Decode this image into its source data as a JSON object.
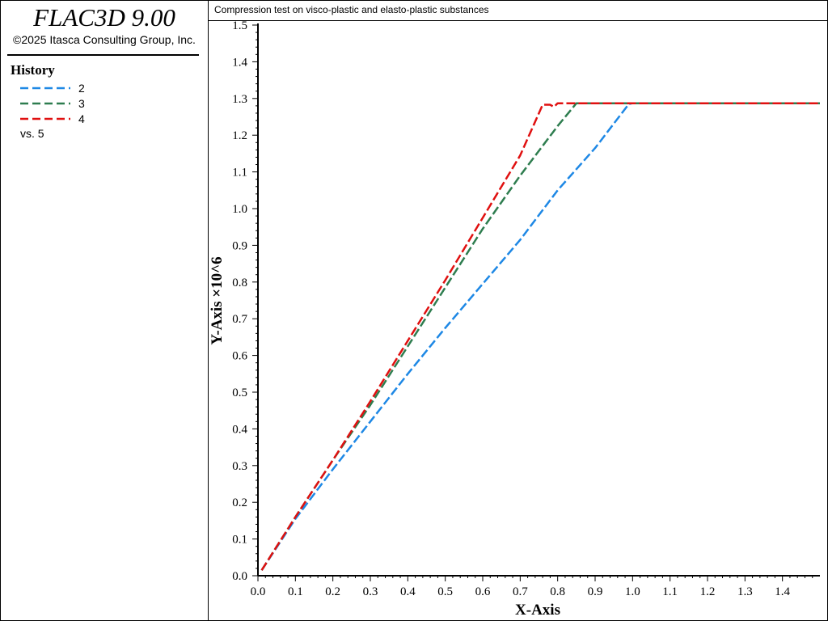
{
  "app": {
    "title": "FLAC3D 9.00",
    "copyright": "©2025 Itasca Consulting Group, Inc."
  },
  "legend": {
    "title": "History",
    "items": [
      {
        "label": "2",
        "color": "#1e88e5"
      },
      {
        "label": "3",
        "color": "#2e7d4f"
      },
      {
        "label": "4",
        "color": "#e01010"
      }
    ],
    "vs_label": "vs. 5"
  },
  "chart_data": {
    "type": "line",
    "title": "Compression test on visco-plastic and elasto-plastic substances",
    "xlabel": "X-Axis",
    "ylabel": "Y-Axis ×10^6",
    "xlim": [
      0.0,
      1.5
    ],
    "ylim": [
      0.0,
      1.5
    ],
    "x_ticks": [
      "0.0",
      "0.1",
      "0.2",
      "0.3",
      "0.4",
      "0.5",
      "0.6",
      "0.7",
      "0.8",
      "0.9",
      "1.0",
      "1.1",
      "1.2",
      "1.3",
      "1.4"
    ],
    "y_ticks": [
      "0.0",
      "0.1",
      "0.2",
      "0.3",
      "0.4",
      "0.5",
      "0.6",
      "0.7",
      "0.8",
      "0.9",
      "1.0",
      "1.1",
      "1.2",
      "1.3",
      "1.4",
      "1.5"
    ],
    "grid": false,
    "legend_position": "left-panel",
    "series": [
      {
        "name": "2",
        "color": "#1e88e5",
        "x": [
          0.01,
          0.1,
          0.2,
          0.3,
          0.4,
          0.5,
          0.6,
          0.7,
          0.8,
          0.9,
          0.99,
          1.0,
          1.2,
          1.4,
          1.5
        ],
        "y": [
          0.015,
          0.155,
          0.29,
          0.42,
          0.55,
          0.675,
          0.795,
          0.915,
          1.05,
          1.165,
          1.285,
          1.287,
          1.287,
          1.287,
          1.287
        ]
      },
      {
        "name": "3",
        "color": "#2e7d4f",
        "x": [
          0.01,
          0.1,
          0.2,
          0.3,
          0.4,
          0.5,
          0.6,
          0.7,
          0.8,
          0.85,
          0.9,
          1.0,
          1.2,
          1.4,
          1.5
        ],
        "y": [
          0.015,
          0.16,
          0.315,
          0.465,
          0.625,
          0.785,
          0.945,
          1.09,
          1.225,
          1.287,
          1.287,
          1.287,
          1.287,
          1.287,
          1.287
        ]
      },
      {
        "name": "4",
        "color": "#e01010",
        "x": [
          0.01,
          0.1,
          0.2,
          0.3,
          0.4,
          0.5,
          0.6,
          0.7,
          0.76,
          0.78,
          0.79,
          0.8,
          1.0,
          1.2,
          1.4,
          1.5
        ],
        "y": [
          0.015,
          0.16,
          0.315,
          0.475,
          0.64,
          0.805,
          0.975,
          1.145,
          1.283,
          1.283,
          1.277,
          1.287,
          1.287,
          1.287,
          1.287,
          1.287
        ]
      }
    ]
  }
}
